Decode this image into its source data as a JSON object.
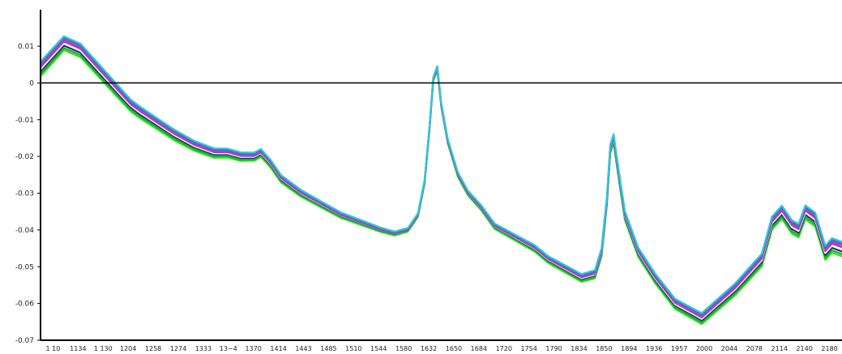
{
  "chart_data": {
    "type": "line",
    "title": "",
    "xlabel": "",
    "ylabel": "",
    "grid": false,
    "legend": "none",
    "xlim": [
      1040,
      2240
    ],
    "ylim": [
      -0.07,
      0.01
    ],
    "y_tick_labels": [
      {
        "v": 0.01,
        "label": "0.01"
      },
      {
        "v": 0.0,
        "label": "0"
      },
      {
        "v": -0.01,
        "label": "-0.01"
      },
      {
        "v": -0.02,
        "label": "-0.02"
      },
      {
        "v": -0.03,
        "label": "-0.03"
      },
      {
        "v": -0.04,
        "label": "-0.04"
      },
      {
        "v": -0.05,
        "label": "-0.05"
      },
      {
        "v": -0.06,
        "label": "-0.06"
      },
      {
        "v": -0.07,
        "label": "-0.07"
      }
    ],
    "x_tick_labels": [
      "1 10",
      "1134",
      "1 130",
      "1204",
      "1258",
      "1274",
      "1333",
      "13~4",
      "1370",
      "1414",
      "1443",
      "1485",
      "1510",
      "1544",
      "1580",
      "1632",
      "1650",
      "1684",
      "1720",
      "1754",
      "1790",
      "1834",
      "1850",
      "1894",
      "1936",
      "1957",
      "2000",
      "2044",
      "2078",
      "2114",
      "2140",
      "2180"
    ],
    "baseline": 0,
    "colors": {
      "axis": "#000000",
      "zero_line": "#000000",
      "series": [
        "#22e51c",
        "#17b81a",
        "#2a2a7a",
        "#f2f2f2",
        "#9a3fd0",
        "#c0409c",
        "#3a6fd8",
        "#2fc8d8"
      ]
    },
    "profile_x": [
      1040,
      1060,
      1075,
      1100,
      1120,
      1140,
      1160,
      1175,
      1190,
      1215,
      1240,
      1270,
      1300,
      1320,
      1340,
      1360,
      1370,
      1385,
      1400,
      1430,
      1460,
      1490,
      1520,
      1550,
      1570,
      1590,
      1605,
      1615,
      1622,
      1628,
      1634,
      1640,
      1650,
      1665,
      1680,
      1700,
      1720,
      1750,
      1780,
      1800,
      1830,
      1850,
      1870,
      1880,
      1888,
      1893,
      1898,
      1905,
      1915,
      1935,
      1960,
      1990,
      2010,
      2030,
      2055,
      2080,
      2100,
      2120,
      2135,
      2150,
      2165,
      2175,
      2185,
      2200,
      2215,
      2225,
      2240
    ],
    "base_profile_y": [
      0.004,
      0.008,
      0.011,
      0.009,
      0.005,
      0.001,
      -0.003,
      -0.006,
      -0.008,
      -0.011,
      -0.014,
      -0.017,
      -0.019,
      -0.019,
      -0.02,
      -0.02,
      -0.019,
      -0.022,
      -0.026,
      -0.03,
      -0.033,
      -0.036,
      -0.038,
      -0.04,
      -0.041,
      -0.04,
      -0.036,
      -0.027,
      -0.013,
      0.001,
      0.004,
      -0.006,
      -0.016,
      -0.025,
      -0.03,
      -0.034,
      -0.039,
      -0.042,
      -0.045,
      -0.048,
      -0.051,
      -0.053,
      -0.052,
      -0.046,
      -0.032,
      -0.018,
      -0.015,
      -0.024,
      -0.036,
      -0.046,
      -0.053,
      -0.06,
      -0.062,
      -0.064,
      -0.06,
      -0.056,
      -0.052,
      -0.048,
      -0.038,
      -0.035,
      -0.039,
      -0.04,
      -0.035,
      -0.037,
      -0.046,
      -0.044,
      -0.045
    ],
    "series": [
      {
        "offsets": [
          -0.0022,
          -0.0004,
          -0.0022
        ]
      },
      {
        "offsets": [
          -0.0016,
          -0.0002,
          -0.0016
        ]
      },
      {
        "offsets": [
          -0.0009,
          0.0,
          -0.0009
        ]
      },
      {
        "offsets": [
          -0.0003,
          0.0,
          -0.0003
        ]
      },
      {
        "offsets": [
          0.0003,
          0.0,
          0.0003
        ]
      },
      {
        "offsets": [
          0.0008,
          0.0001,
          0.0008
        ]
      },
      {
        "offsets": [
          0.0013,
          0.0003,
          0.0013
        ]
      },
      {
        "offsets": [
          0.0018,
          0.0005,
          0.0018
        ]
      }
    ]
  }
}
